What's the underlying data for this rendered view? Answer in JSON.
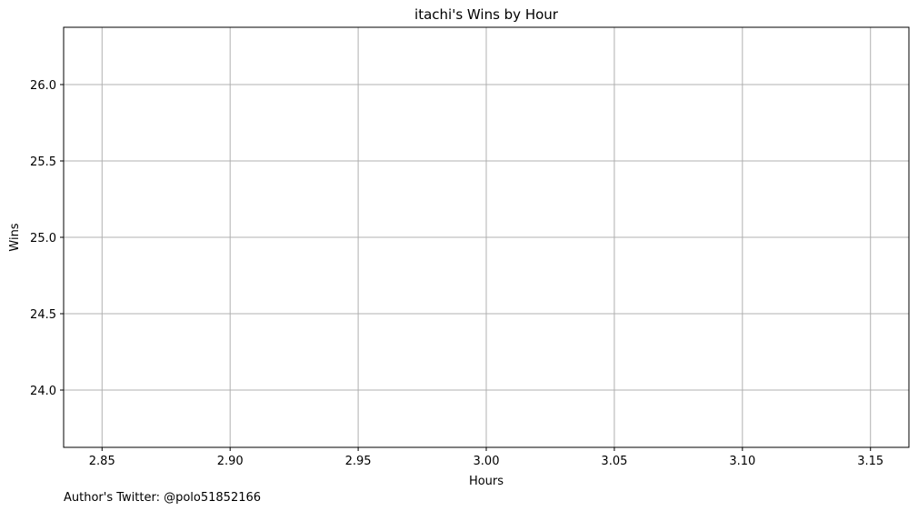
{
  "chart_data": {
    "type": "scatter",
    "title": "itachi's Wins by Hour",
    "xlabel": "Hours",
    "ylabel": "Wins",
    "xlim": [
      2.835,
      3.165
    ],
    "ylim": [
      23.625,
      26.375
    ],
    "x_ticks": [
      2.85,
      2.9,
      2.95,
      3.0,
      3.05,
      3.1,
      3.15
    ],
    "x_tick_labels": [
      "2.85",
      "2.90",
      "2.95",
      "3.00",
      "3.05",
      "3.10",
      "3.15"
    ],
    "y_ticks": [
      24.0,
      24.5,
      25.0,
      25.5,
      26.0
    ],
    "y_tick_labels": [
      "24.0",
      "24.5",
      "25.0",
      "25.5",
      "26.0"
    ],
    "grid": true,
    "series": [],
    "grid_color": "#b0b0b0"
  },
  "footer": {
    "text": "Author's Twitter: @polo51852166"
  }
}
